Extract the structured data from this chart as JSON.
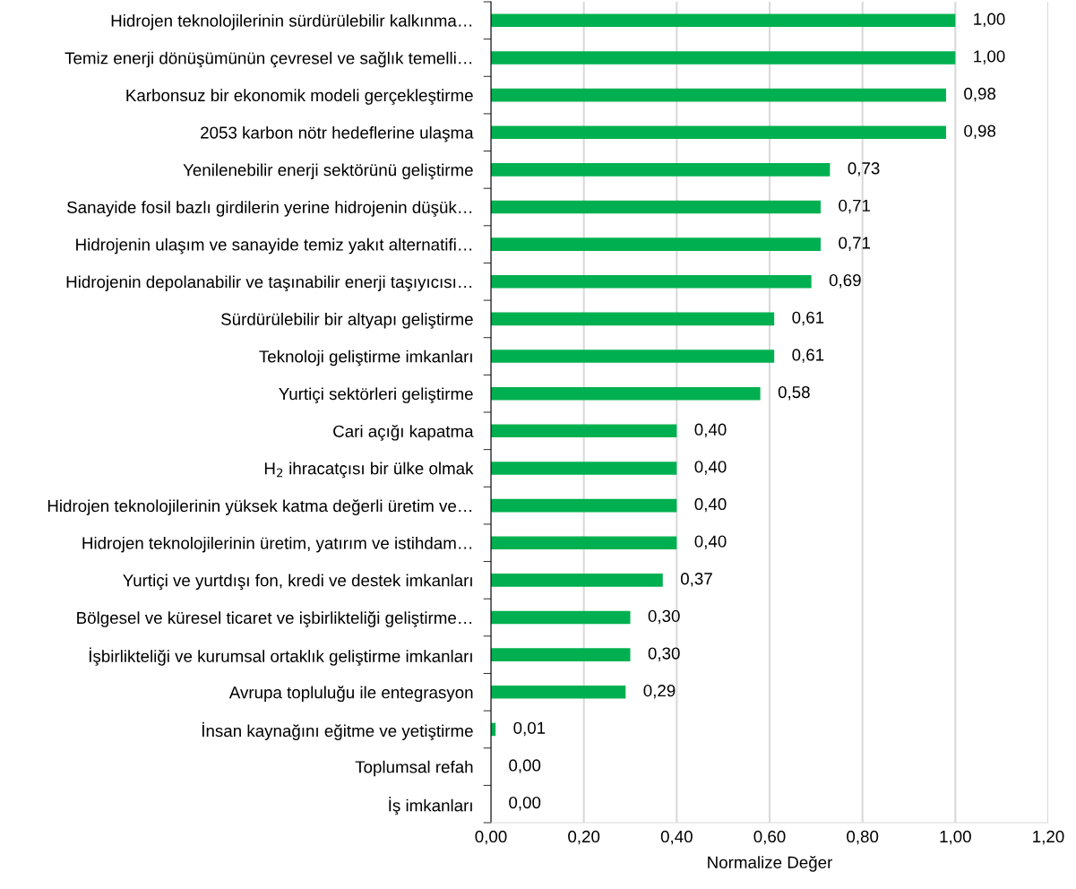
{
  "chart_data": {
    "type": "bar",
    "orientation": "horizontal",
    "xlabel": "Normalize Değer",
    "categories": [
      "Hidrojen teknolojilerinin sürdürülebilir kalkınma…",
      "Temiz enerji dönüşümünün çevresel ve sağlık temelli…",
      "Karbonsuz bir ekonomik modeli gerçekleştirme",
      "2053 karbon nötr hedeflerine ulaşma",
      "Yenilenebilir enerji sektörünü geliştirme",
      "Sanayide fosil bazlı girdilerin yerine hidrojenin düşük…",
      "Hidrojenin ulaşım ve sanayide temiz yakıt alternatifi…",
      "Hidrojenin depolanabilir ve taşınabilir enerji taşıyıcısı…",
      "Sürdürülebilir bir altyapı geliştirme",
      "Teknoloji geliştirme imkanları",
      "Yurtiçi sektörleri geliştirme",
      "Cari açığı kapatma",
      "H$_{2}$ ihracatçısı bir ülke olmak",
      "Hidrojen teknolojilerinin yüksek katma değerli üretim ve…",
      "Hidrojen teknolojilerinin üretim, yatırım ve istihdam…",
      "Yurtiçi ve yurtdışı fon, kredi ve destek imkanları",
      "Bölgesel ve küresel ticaret ve işbirlikteliği geliştirme…",
      "İşbirlikteliği ve kurumsal ortaklık geliştirme imkanları",
      "Avrupa topluluğu ile entegrasyon",
      "İnsan kaynağını eğitme ve yetiştirme",
      "Toplumsal refah",
      "İş imkanları"
    ],
    "values": [
      1.0,
      1.0,
      0.98,
      0.98,
      0.73,
      0.71,
      0.71,
      0.69,
      0.61,
      0.61,
      0.58,
      0.4,
      0.4,
      0.4,
      0.4,
      0.37,
      0.3,
      0.3,
      0.29,
      0.01,
      0.0,
      0.0
    ],
    "value_labels": [
      "1,00",
      "1,00",
      "0,98",
      "0,98",
      "0,73",
      "0,71",
      "0,71",
      "0,69",
      "0,61",
      "0,61",
      "0,58",
      "0,40",
      "0,40",
      "0,40",
      "0,40",
      "0,37",
      "0,30",
      "0,30",
      "0,29",
      "0,01",
      "0,00",
      "0,00"
    ],
    "color": "#00b050",
    "xlim": [
      0,
      1.2
    ],
    "xticks": [
      {
        "value": 0,
        "label": "0,00"
      },
      {
        "value": 0.2,
        "label": "0,20"
      },
      {
        "value": 0.4,
        "label": "0,40"
      },
      {
        "value": 0.6,
        "label": "0,60"
      },
      {
        "value": 0.8,
        "label": "0,80"
      },
      {
        "value": 1.0,
        "label": "1,00"
      },
      {
        "value": 1.2,
        "label": "1,20"
      }
    ],
    "grid": "x",
    "legend": false
  }
}
